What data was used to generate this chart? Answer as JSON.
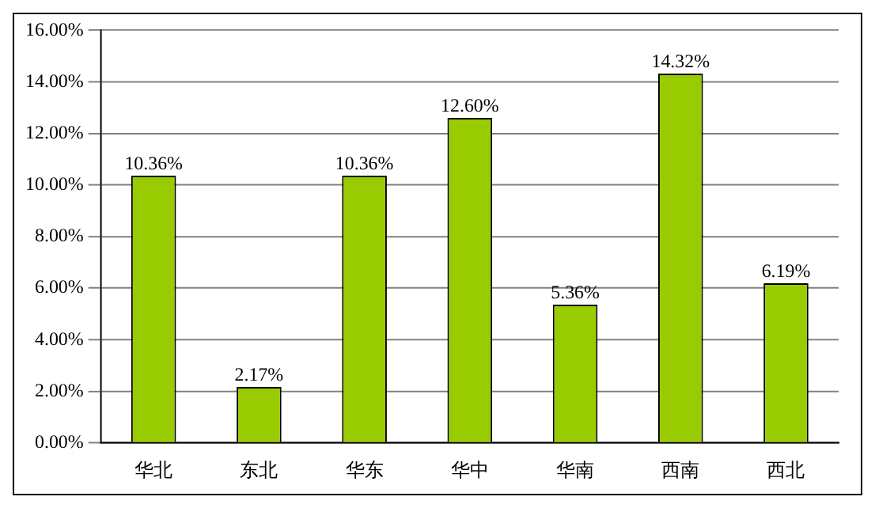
{
  "chart_data": {
    "type": "bar",
    "categories": [
      "华北",
      "东北",
      "华东",
      "华中",
      "华南",
      "西南",
      "西北"
    ],
    "values": [
      10.36,
      2.17,
      10.36,
      12.6,
      5.36,
      14.32,
      6.19
    ],
    "value_labels": [
      "10.36%",
      "2.17%",
      "10.36%",
      "12.60%",
      "5.36%",
      "14.32%",
      "6.19%"
    ],
    "color": "#99cc00",
    "ylim": [
      0,
      16
    ],
    "yticks": [
      {
        "value": 0,
        "label": "0.00%"
      },
      {
        "value": 2,
        "label": "2.00%"
      },
      {
        "value": 4,
        "label": "4.00%"
      },
      {
        "value": 6,
        "label": "6.00%"
      },
      {
        "value": 8,
        "label": "8.00%"
      },
      {
        "value": 10,
        "label": "10.00%"
      },
      {
        "value": 12,
        "label": "12.00%"
      },
      {
        "value": 14,
        "label": "14.00%"
      },
      {
        "value": 16,
        "label": "16.00%"
      }
    ],
    "grid": "y",
    "legend": false
  }
}
